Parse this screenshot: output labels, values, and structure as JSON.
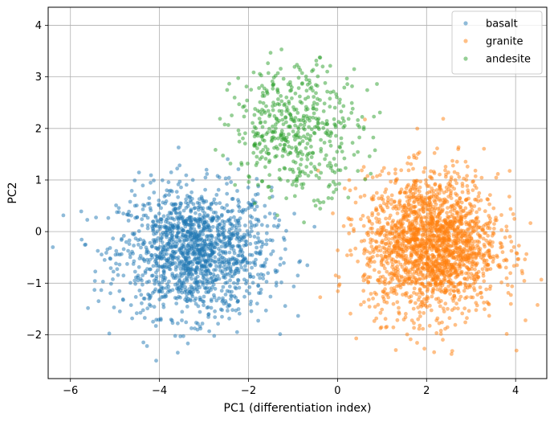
{
  "chart_data": {
    "type": "scatter",
    "title": "",
    "xlabel": "PC1 (differentiation index)",
    "ylabel": "PC2",
    "xlim": [
      -6.5,
      4.7
    ],
    "ylim": [
      -2.85,
      4.35
    ],
    "xticks": [
      -6,
      -4,
      -2,
      0,
      2,
      4
    ],
    "yticks": [
      -2,
      -1,
      0,
      1,
      2,
      3,
      4
    ],
    "xtick_labels": [
      "−6",
      "−4",
      "−2",
      "0",
      "2",
      "4"
    ],
    "ytick_labels": [
      "−2",
      "−1",
      "0",
      "1",
      "2",
      "3",
      "4"
    ],
    "grid": true,
    "legend_position": "top-right",
    "series": [
      {
        "name": "basalt",
        "color": "#1f77b4",
        "center": [
          -3.2,
          -0.4
        ],
        "spread": [
          0.85,
          0.62
        ],
        "count": 1500
      },
      {
        "name": "granite",
        "color": "#ff7f0e",
        "center": [
          2.1,
          -0.25
        ],
        "spread": [
          0.75,
          0.68
        ],
        "count": 2000
      },
      {
        "name": "andesite",
        "color": "#2ca02c",
        "center": [
          -0.9,
          2.0
        ],
        "spread": [
          0.72,
          0.62
        ],
        "count": 500
      }
    ]
  }
}
